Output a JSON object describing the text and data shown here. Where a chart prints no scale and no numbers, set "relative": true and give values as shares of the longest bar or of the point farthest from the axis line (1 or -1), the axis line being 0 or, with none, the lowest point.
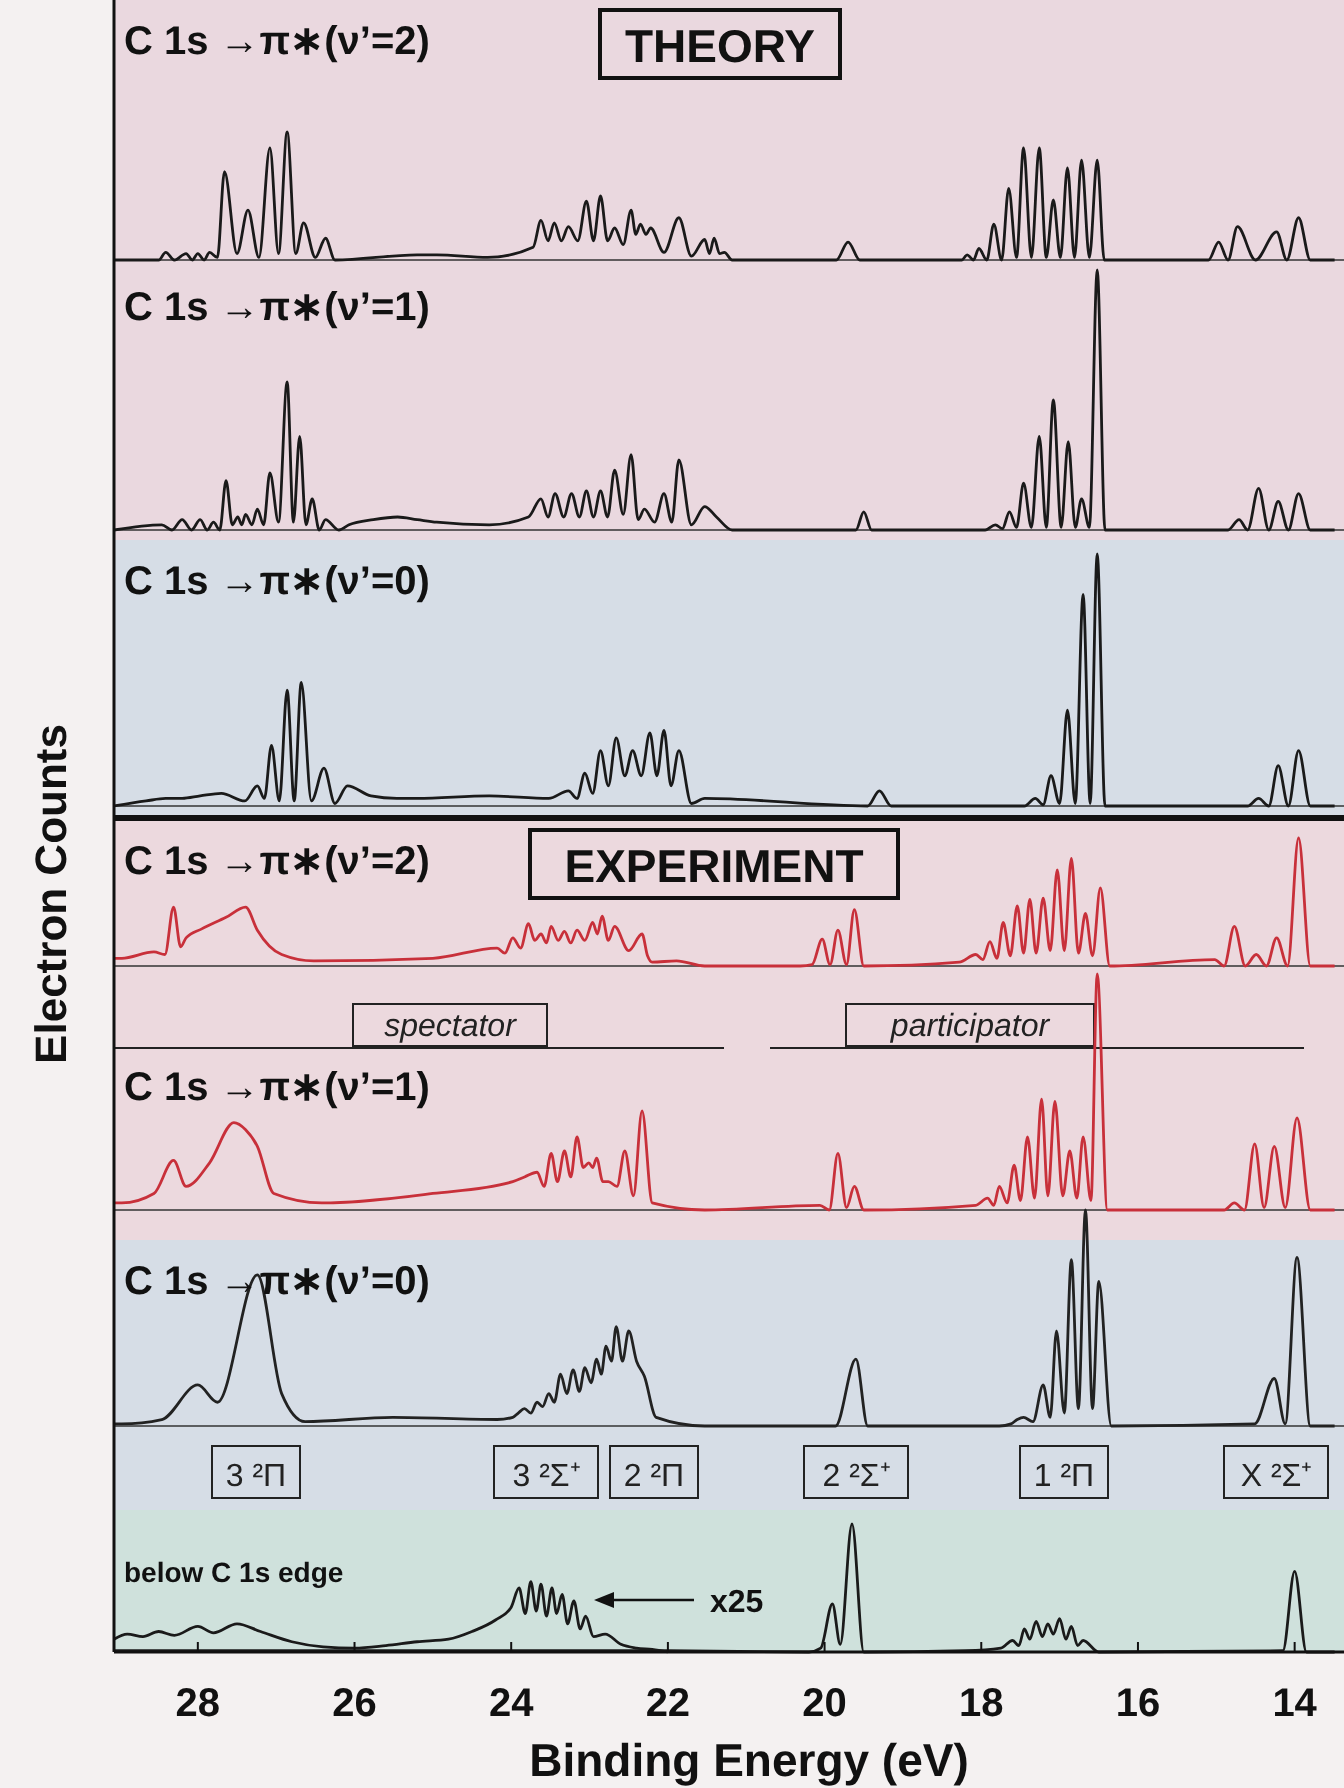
{
  "chart_data": [
    {
      "type": "line",
      "title": "C 1s →π∗(ν’=2)",
      "relative": true,
      "tick_labels": false,
      "xlim": [
        29.07,
        13.37
      ],
      "annotations": [
        "THEORY"
      ],
      "series": [
        {
          "color": "#1a1a1a",
          "x": [
            29.07,
            28.5,
            28.41,
            28.3,
            28.15,
            28.07,
            28.0,
            27.92,
            27.85,
            27.75,
            27.66,
            27.5,
            27.36,
            27.22,
            27.08,
            26.97,
            26.86,
            26.75,
            26.65,
            26.5,
            26.37,
            26.25,
            25.2,
            24.95,
            24.3,
            23.72,
            23.62,
            23.53,
            23.45,
            23.36,
            23.27,
            23.15,
            23.04,
            22.95,
            22.86,
            22.77,
            22.68,
            22.57,
            22.47,
            22.41,
            22.35,
            22.28,
            22.22,
            22.05,
            21.86,
            21.7,
            21.53,
            21.47,
            21.41,
            21.34,
            21.28,
            21.18,
            19.85,
            19.7,
            19.55,
            18.25,
            18.18,
            18.1,
            18.03,
            17.93,
            17.84,
            17.74,
            17.65,
            17.55,
            17.46,
            17.36,
            17.26,
            17.17,
            17.08,
            16.99,
            16.9,
            16.81,
            16.72,
            16.62,
            16.52,
            16.43,
            15.1,
            14.97,
            14.85,
            14.73,
            14.5,
            14.23,
            14.1,
            13.95,
            13.8,
            13.49
          ],
          "values": [
            0,
            0,
            0.06,
            0,
            0.05,
            0,
            0.05,
            0,
            0.06,
            0.02,
            0.69,
            0.05,
            0.39,
            0.02,
            0.875,
            0.05,
            1,
            0.05,
            0.29,
            0.02,
            0.17,
            0,
            0.04,
            0.04,
            0.02,
            0.1,
            0.31,
            0.15,
            0.29,
            0.15,
            0.26,
            0.15,
            0.46,
            0.15,
            0.5,
            0.15,
            0.25,
            0.12,
            0.39,
            0.2,
            0.28,
            0.2,
            0.25,
            0.06,
            0.33,
            0.03,
            0.16,
            0.05,
            0.17,
            0.05,
            0.06,
            0,
            0,
            0.14,
            0,
            0,
            0.04,
            0,
            0.09,
            0,
            0.28,
            0,
            0.56,
            0.02,
            0.875,
            0.02,
            0.875,
            0.02,
            0.47,
            0.02,
            0.72,
            0.02,
            0.78,
            0.02,
            0.78,
            0,
            0,
            0.14,
            0,
            0.26,
            0,
            0.22,
            0,
            0.33,
            0,
            0
          ]
        }
      ]
    },
    {
      "type": "line",
      "title": "C 1s →π∗(ν’=1)",
      "relative": true,
      "tick_labels": false,
      "xlim": [
        29.07,
        13.37
      ],
      "series": [
        {
          "color": "#1a1a1a",
          "x": [
            29.07,
            28.46,
            28.33,
            28.2,
            28.08,
            27.97,
            27.88,
            27.8,
            27.72,
            27.64,
            27.56,
            27.49,
            27.44,
            27.39,
            27.31,
            27.24,
            27.16,
            27.08,
            26.97,
            26.86,
            26.78,
            26.7,
            26.62,
            26.54,
            26.45,
            26.37,
            26.2,
            26.07,
            25.76,
            25.45,
            25.2,
            24.95,
            24.28,
            23.78,
            23.62,
            23.53,
            23.44,
            23.33,
            23.23,
            23.13,
            23.04,
            22.95,
            22.86,
            22.77,
            22.68,
            22.57,
            22.47,
            22.38,
            22.3,
            22.17,
            22.05,
            21.95,
            21.86,
            21.7,
            21.53,
            21.38,
            21.18,
            19.6,
            19.5,
            19.4,
            17.95,
            17.82,
            17.73,
            17.64,
            17.55,
            17.46,
            17.36,
            17.26,
            17.17,
            17.08,
            16.98,
            16.89,
            16.8,
            16.72,
            16.62,
            16.52,
            16.42,
            14.85,
            14.71,
            14.6,
            14.46,
            14.33,
            14.21,
            14.08,
            13.95,
            13.8,
            13.49
          ],
          "values": [
            0,
            0.02,
            0,
            0.04,
            0,
            0.04,
            0,
            0.03,
            0,
            0.19,
            0.02,
            0.05,
            0.02,
            0.06,
            0.02,
            0.08,
            0.02,
            0.22,
            0.03,
            0.57,
            0.03,
            0.36,
            0.02,
            0.12,
            0,
            0.04,
            0,
            0.02,
            0.04,
            0.05,
            0.04,
            0.03,
            0.02,
            0.05,
            0.12,
            0.05,
            0.14,
            0.05,
            0.14,
            0.05,
            0.15,
            0.05,
            0.15,
            0.05,
            0.23,
            0.06,
            0.29,
            0.04,
            0.08,
            0.03,
            0.14,
            0.03,
            0.27,
            0.02,
            0.09,
            0.05,
            0,
            0,
            0.07,
            0,
            0,
            0.02,
            0.005,
            0.07,
            0.01,
            0.18,
            0.01,
            0.36,
            0.01,
            0.5,
            0.01,
            0.34,
            0.01,
            0.12,
            0.01,
            1,
            0,
            0,
            0.04,
            0,
            0.16,
            0,
            0.11,
            0,
            0.14,
            0,
            0
          ]
        }
      ]
    },
    {
      "type": "line",
      "title": "C 1s →π∗(ν’=0)",
      "relative": true,
      "tick_labels": false,
      "xlim": [
        29.07,
        13.37
      ],
      "series": [
        {
          "color": "#1a1a1a",
          "x": [
            29.07,
            28.66,
            28.41,
            28.2,
            27.97,
            27.7,
            27.4,
            27.24,
            27.15,
            27.06,
            26.96,
            26.86,
            26.77,
            26.68,
            26.55,
            26.39,
            26.25,
            26.09,
            25.79,
            25.46,
            25.2,
            24.28,
            23.52,
            23.27,
            23.16,
            23.06,
            22.96,
            22.86,
            22.76,
            22.66,
            22.55,
            22.45,
            22.34,
            22.23,
            22.14,
            22.05,
            21.96,
            21.86,
            21.7,
            21.53,
            19.45,
            19.3,
            19.15,
            17.45,
            17.31,
            17.21,
            17.11,
            17.0,
            16.9,
            16.8,
            16.7,
            16.61,
            16.52,
            16.42,
            14.6,
            14.46,
            14.33,
            14.21,
            14.08,
            13.95,
            13.8,
            13.49
          ],
          "values": [
            0,
            0.02,
            0.03,
            0.03,
            0.04,
            0.05,
            0.02,
            0.08,
            0.03,
            0.24,
            0.02,
            0.46,
            0.02,
            0.49,
            0.02,
            0.15,
            0.01,
            0.08,
            0.04,
            0.03,
            0.03,
            0.04,
            0.03,
            0.06,
            0.03,
            0.13,
            0.05,
            0.22,
            0.08,
            0.27,
            0.12,
            0.22,
            0.12,
            0.29,
            0.12,
            0.3,
            0.08,
            0.22,
            0.01,
            0.03,
            0,
            0.06,
            0,
            0,
            0.03,
            0.005,
            0.12,
            0.01,
            0.38,
            0.01,
            0.84,
            0.01,
            1,
            0,
            0,
            0.03,
            0,
            0.16,
            0,
            0.22,
            0,
            0
          ]
        }
      ]
    },
    {
      "type": "line",
      "title": "C 1s →π∗(ν’=2)",
      "relative": true,
      "tick_labels": false,
      "xlim": [
        29.07,
        13.37
      ],
      "annotations": [
        "EXPERIMENT",
        "spectator",
        "participator"
      ],
      "series": [
        {
          "color": "#c8303a",
          "x": [
            29.07,
            28.97,
            28.56,
            28.42,
            28.31,
            28.22,
            28.15,
            27.95,
            27.64,
            27.39,
            27.24,
            26.93,
            26.52,
            25.0,
            24.18,
            24.08,
            23.98,
            23.88,
            23.78,
            23.7,
            23.62,
            23.55,
            23.49,
            23.4,
            23.32,
            23.24,
            23.16,
            23.06,
            22.96,
            22.9,
            22.84,
            22.76,
            22.68,
            22.5,
            22.33,
            22.26,
            22.2,
            21.89,
            21.53,
            20.31,
            20.16,
            20.03,
            19.93,
            19.83,
            19.72,
            19.62,
            19.5,
            18.28,
            18.07,
            17.98,
            17.89,
            17.8,
            17.72,
            17.63,
            17.54,
            17.46,
            17.38,
            17.3,
            17.21,
            17.12,
            17.03,
            16.94,
            16.85,
            16.76,
            16.67,
            16.58,
            16.48,
            16.36,
            15.02,
            14.9,
            14.77,
            14.63,
            14.49,
            14.36,
            14.23,
            14.09,
            13.95,
            13.8,
            13.49
          ],
          "values": [
            0.06,
            0.06,
            0.11,
            0.09,
            0.46,
            0.15,
            0.22,
            0.29,
            0.38,
            0.46,
            0.28,
            0.09,
            0.04,
            0.06,
            0.14,
            0.1,
            0.22,
            0.14,
            0.33,
            0.2,
            0.25,
            0.18,
            0.31,
            0.2,
            0.27,
            0.18,
            0.28,
            0.2,
            0.34,
            0.25,
            0.39,
            0.2,
            0.31,
            0.12,
            0.25,
            0.08,
            0.03,
            0.04,
            0,
            0,
            0.01,
            0.21,
            0.01,
            0.28,
            0.01,
            0.44,
            0,
            0.03,
            0.09,
            0.05,
            0.19,
            0.06,
            0.34,
            0.08,
            0.47,
            0.1,
            0.52,
            0.1,
            0.53,
            0.12,
            0.75,
            0.12,
            0.84,
            0.1,
            0.41,
            0.08,
            0.61,
            0,
            0.05,
            0,
            0.31,
            0,
            0.09,
            0,
            0.22,
            0,
            1,
            0,
            0
          ]
        }
      ]
    },
    {
      "type": "line",
      "title": "C 1s →π∗(ν’=1)",
      "relative": true,
      "tick_labels": false,
      "xlim": [
        29.07,
        13.37
      ],
      "ylabel": "Electron Counts",
      "series": [
        {
          "color": "#c8303a",
          "x": [
            29.07,
            28.97,
            28.56,
            28.31,
            28.15,
            27.85,
            27.54,
            27.39,
            27.24,
            27.03,
            26.42,
            25.0,
            23.98,
            23.83,
            23.67,
            23.58,
            23.49,
            23.41,
            23.32,
            23.24,
            23.16,
            23.08,
            23.01,
            22.96,
            22.91,
            22.83,
            22.76,
            22.65,
            22.55,
            22.44,
            22.33,
            22.2,
            21.53,
            20.06,
            19.94,
            19.83,
            19.72,
            19.62,
            19.5,
            18.07,
            17.92,
            17.84,
            17.77,
            17.67,
            17.58,
            17.5,
            17.41,
            17.32,
            17.23,
            17.15,
            17.06,
            16.96,
            16.87,
            16.78,
            16.7,
            16.6,
            16.52,
            16.39,
            14.9,
            14.77,
            14.64,
            14.51,
            14.39,
            14.26,
            14.12,
            13.97,
            13.8,
            13.49
          ],
          "values": [
            0.03,
            0.03,
            0.07,
            0.21,
            0.1,
            0.2,
            0.37,
            0.34,
            0.27,
            0.07,
            0.03,
            0.07,
            0.12,
            0.14,
            0.16,
            0.1,
            0.24,
            0.12,
            0.25,
            0.14,
            0.31,
            0.18,
            0.2,
            0.18,
            0.22,
            0.12,
            0.12,
            0.1,
            0.25,
            0.06,
            0.42,
            0.03,
            0,
            0.02,
            0,
            0.24,
            0.01,
            0.1,
            0,
            0.02,
            0.05,
            0.02,
            0.1,
            0.03,
            0.19,
            0.04,
            0.31,
            0.05,
            0.47,
            0.06,
            0.46,
            0.06,
            0.25,
            0.05,
            0.31,
            0.04,
            1,
            0,
            0,
            0.03,
            0,
            0.28,
            0.01,
            0.27,
            0.01,
            0.39,
            0,
            0
          ]
        }
      ]
    },
    {
      "type": "line",
      "title": "C 1s →π∗(ν’=0)",
      "relative": true,
      "tick_labels": false,
      "xlim": [
        29.07,
        13.37
      ],
      "annotations": [
        "3 ²Π",
        "3 ²Σ⁺",
        "2 ²Π",
        "2 ²Σ⁺",
        "1 ²Π",
        "X ²Σ⁺"
      ],
      "series": [
        {
          "color": "#222222",
          "x": [
            29.07,
            28.97,
            28.46,
            28.0,
            27.75,
            27.24,
            26.93,
            26.63,
            25.51,
            24.18,
            23.98,
            23.91,
            23.83,
            23.75,
            23.67,
            23.6,
            23.52,
            23.45,
            23.37,
            23.29,
            23.21,
            23.13,
            23.06,
            22.98,
            22.91,
            22.85,
            22.79,
            22.72,
            22.66,
            22.58,
            22.5,
            22.4,
            22.3,
            22.15,
            21.53,
            19.86,
            19.6,
            19.45,
            17.77,
            17.62,
            17.54,
            17.46,
            17.34,
            17.21,
            17.12,
            17.04,
            16.94,
            16.85,
            16.76,
            16.67,
            16.58,
            16.5,
            16.34,
            14.51,
            14.26,
            14.12,
            13.97,
            13.8,
            13.49
          ],
          "values": [
            0.01,
            0.01,
            0.03,
            0.19,
            0.11,
            0.7,
            0.15,
            0.02,
            0.04,
            0.03,
            0.04,
            0.06,
            0.08,
            0.06,
            0.11,
            0.09,
            0.15,
            0.11,
            0.24,
            0.15,
            0.26,
            0.16,
            0.27,
            0.2,
            0.31,
            0.24,
            0.37,
            0.3,
            0.46,
            0.3,
            0.44,
            0.3,
            0.23,
            0.04,
            0,
            0,
            0.31,
            0,
            0,
            0.01,
            0.03,
            0.04,
            0.02,
            0.19,
            0.04,
            0.44,
            0.06,
            0.77,
            0.08,
            1,
            0.08,
            0.67,
            0,
            0.01,
            0.22,
            0.01,
            0.78,
            0,
            0
          ]
        }
      ]
    },
    {
      "type": "line",
      "title": "below C 1s edge",
      "relative": true,
      "tick_labels": "x",
      "xlim": [
        29.07,
        13.37
      ],
      "xticks": [
        28,
        26,
        24,
        22,
        20,
        18,
        16,
        14
      ],
      "xlabel": "Binding Energy (eV)",
      "annotations": [
        "x25"
      ],
      "series": [
        {
          "color": "#1a1a1a",
          "x": [
            29.07,
            28.9,
            28.7,
            28.5,
            28.3,
            28.0,
            27.8,
            27.5,
            27.2,
            26.8,
            26.4,
            26.0,
            25.6,
            25.2,
            24.8,
            24.5,
            24.2,
            24.0,
            23.9,
            23.82,
            23.75,
            23.68,
            23.62,
            23.55,
            23.48,
            23.42,
            23.35,
            23.28,
            23.2,
            23.12,
            23.05,
            22.95,
            22.8,
            22.6,
            22.4,
            22.2,
            22.0
          ],
          "values": [
            0.1,
            0.14,
            0.12,
            0.16,
            0.13,
            0.2,
            0.15,
            0.22,
            0.16,
            0.08,
            0.04,
            0.03,
            0.05,
            0.08,
            0.1,
            0.16,
            0.25,
            0.35,
            0.5,
            0.3,
            0.55,
            0.32,
            0.53,
            0.28,
            0.5,
            0.3,
            0.45,
            0.22,
            0.4,
            0.18,
            0.28,
            0.12,
            0.14,
            0.06,
            0.03,
            0.02,
            0
          ]
        },
        {
          "color": "#1a1a1a",
          "x": [
            29.07,
            22.0,
            20.2,
            20.05,
            19.9,
            19.8,
            19.65,
            19.5,
            18.2,
            17.75,
            17.6,
            17.52,
            17.45,
            17.38,
            17.3,
            17.22,
            17.15,
            17.08,
            17.0,
            16.92,
            16.85,
            16.77,
            16.7,
            16.5,
            14.15,
            14.0,
            13.85,
            13.49
          ],
          "values": [
            0.01,
            0.01,
            0,
            0.03,
            0.375,
            0.06,
            1,
            0,
            0.01,
            0.03,
            0.09,
            0.05,
            0.18,
            0.1,
            0.24,
            0.12,
            0.22,
            0.14,
            0.26,
            0.1,
            0.2,
            0.05,
            0.09,
            0,
            0.01,
            0.63,
            0,
            0
          ]
        }
      ]
    }
  ]
}
